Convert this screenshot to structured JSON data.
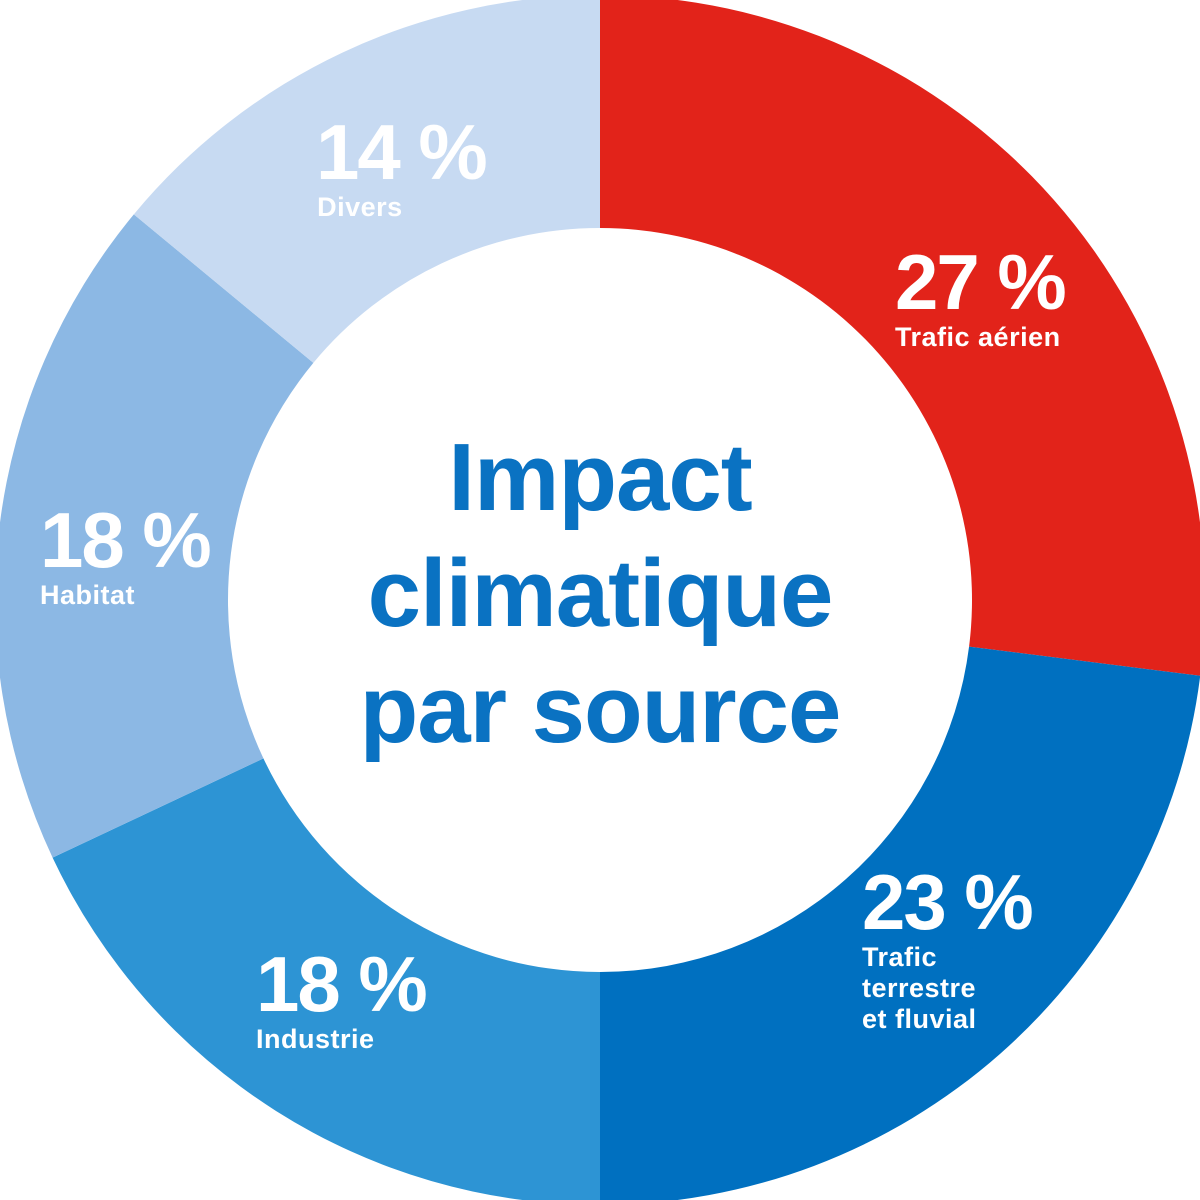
{
  "chart_data": {
    "type": "pie",
    "title": [
      "Impact",
      "climatique",
      "par source"
    ],
    "slices": [
      {
        "label": "Trafic aérien",
        "value": 27,
        "value_text": "27 %",
        "color": "#e2231a"
      },
      {
        "label": "Trafic terrestre et fluvial",
        "label_lines": [
          "Trafic",
          "terrestre",
          "et fluvial"
        ],
        "value": 23,
        "value_text": "23 %",
        "color": "#0070c0"
      },
      {
        "label": "Industrie",
        "value": 18,
        "value_text": "18 %",
        "color": "#2d94d4"
      },
      {
        "label": "Habitat",
        "value": 18,
        "value_text": "18 %",
        "color": "#8cb8e4"
      },
      {
        "label": "Divers",
        "value": 14,
        "value_text": "14 %",
        "color": "#c7daf2"
      }
    ]
  }
}
